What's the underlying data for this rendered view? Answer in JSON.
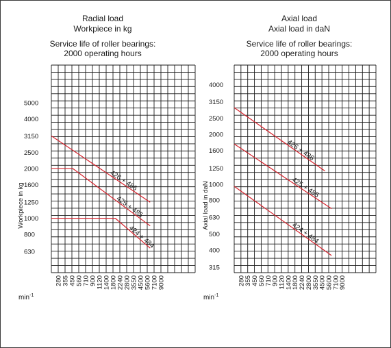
{
  "chart_data": [
    {
      "type": "line",
      "title": "Radial load",
      "subtitle": "Workpiece in kg",
      "subtitle2": "Service life of roller bearings:",
      "subtitle3": "2000 operating hours",
      "ylabel": "Workpiece in kg",
      "xlabel": "min",
      "xlabel_sup": "-1",
      "x_ticks": [
        "280",
        "355",
        "450",
        "560",
        "710",
        "900",
        "1120",
        "1400",
        "1800",
        "2240",
        "2800",
        "3550",
        "4500",
        "5600",
        "7100",
        "9000"
      ],
      "y_ticks": [
        "630",
        "800",
        "1000",
        "1250",
        "1600",
        "2000",
        "2500",
        "3150",
        "4000",
        "5000"
      ],
      "grid": true,
      "series": [
        {
          "name": "426 + 486",
          "x": [
            280,
            5600
          ],
          "y": [
            3150,
            1250
          ]
        },
        {
          "name": "425 + 485",
          "x": [
            280,
            450,
            450,
            5600
          ],
          "y": [
            2000,
            2000,
            2000,
            900
          ]
        },
        {
          "name": "424 + 484",
          "x": [
            280,
            1800,
            1800,
            5600
          ],
          "y": [
            1000,
            1000,
            1000,
            660
          ]
        }
      ]
    },
    {
      "type": "line",
      "title": "Axial load",
      "subtitle": "Axial load in daN",
      "subtitle2": "Service life of roller bearings:",
      "subtitle3": "2000 operating hours",
      "ylabel": "Axial load in daN",
      "xlabel": "min",
      "xlabel_sup": "-1",
      "x_ticks": [
        "280",
        "355",
        "450",
        "560",
        "710",
        "900",
        "1120",
        "1400",
        "1800",
        "2240",
        "2800",
        "3550",
        "4500",
        "5600",
        "7100",
        "9000"
      ],
      "y_ticks": [
        "315",
        "400",
        "500",
        "630",
        "800",
        "1000",
        "1250",
        "1600",
        "2000",
        "2500",
        "3150",
        "4000"
      ],
      "grid": true,
      "series": [
        {
          "name": "426 + 486",
          "x": [
            280,
            4500
          ],
          "y": [
            2900,
            1200
          ]
        },
        {
          "name": "425 + 485",
          "x": [
            280,
            5600
          ],
          "y": [
            1750,
            710
          ]
        },
        {
          "name": "424 + 484",
          "x": [
            280,
            5600
          ],
          "y": [
            970,
            370
          ]
        }
      ]
    }
  ],
  "colors": {
    "grid": "#1a1a1a",
    "series": "#d6202a"
  }
}
